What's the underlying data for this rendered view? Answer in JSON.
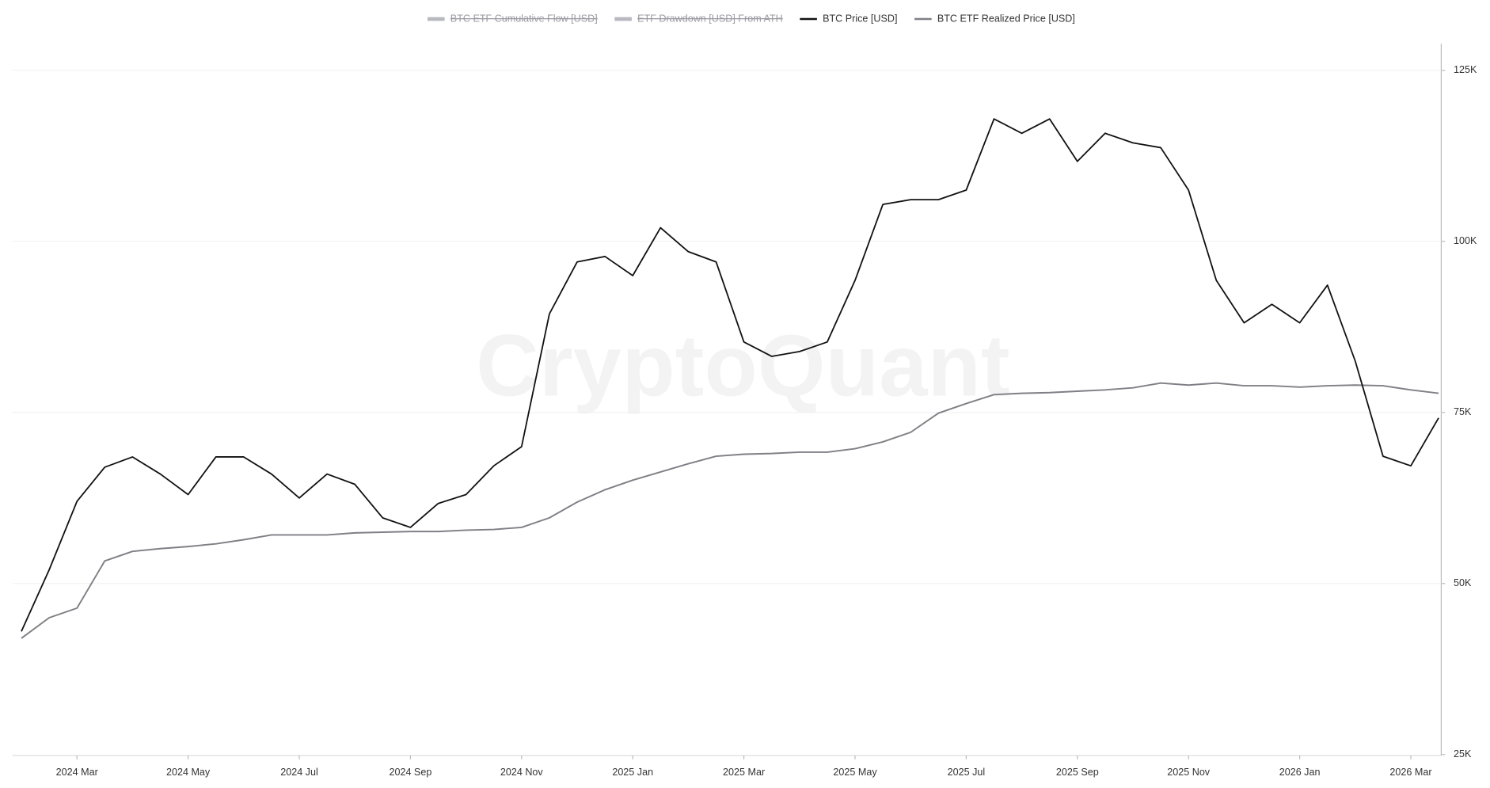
{
  "chart_data": {
    "type": "line",
    "watermark": "CryptoQuant",
    "categories": [
      null,
      null,
      "2024 Mar",
      null,
      null,
      null,
      "2024 May",
      null,
      null,
      null,
      "2024 Jul",
      null,
      null,
      null,
      "2024 Sep",
      null,
      null,
      null,
      "2024 Nov",
      null,
      null,
      null,
      "2025 Jan",
      null,
      null,
      null,
      "2025 Mar",
      null,
      null,
      null,
      "2025 May",
      null,
      null,
      null,
      "2025 Jul",
      null,
      null,
      null,
      "2025 Sep",
      null,
      null,
      null,
      "2025 Nov",
      null,
      null,
      null,
      "2026 Jan",
      null,
      null,
      null,
      "2026 Mar",
      null
    ],
    "hidden_series": [
      {
        "name": "BTC ETF Cumulative Flow [USD]",
        "color": "#b8b9c0"
      },
      {
        "name": "ETF Drawdown [USD] From ATH",
        "color": "#b8b9c0"
      }
    ],
    "series": [
      {
        "name": "BTC Price [USD]",
        "color": "#111111",
        "values": [
          43000,
          52000,
          62000,
          67000,
          68500,
          66000,
          63000,
          68500,
          68500,
          66000,
          62500,
          66000,
          64500,
          59600,
          58200,
          61700,
          63000,
          67200,
          70000,
          89400,
          97000,
          97800,
          95000,
          102000,
          98500,
          97000,
          85300,
          83200,
          83900,
          85300,
          94300,
          105400,
          106100,
          106100,
          107500,
          117900,
          115800,
          117900,
          111700,
          115800,
          114400,
          113700,
          107500,
          94300,
          88100,
          90800,
          88100,
          93600,
          82500,
          68600,
          67200,
          74200
        ]
      },
      {
        "name": "BTC ETF Realized Price [USD]",
        "color": "#7f7f85",
        "values": [
          42000,
          45000,
          46400,
          53300,
          54700,
          55100,
          55400,
          55800,
          56400,
          57100,
          57100,
          57100,
          57400,
          57500,
          57600,
          57600,
          57800,
          57900,
          58200,
          59600,
          61900,
          63700,
          65100,
          66300,
          67500,
          68600,
          68900,
          69000,
          69200,
          69200,
          69700,
          70700,
          72100,
          74900,
          76300,
          77600,
          77800,
          77900,
          78100,
          78300,
          78600,
          79300,
          79000,
          79300,
          78900,
          78900,
          78700,
          78900,
          79000,
          78900,
          78300,
          77800
        ]
      }
    ],
    "ylim": [
      25000,
      125000
    ],
    "yticks": [
      {
        "value": 25000,
        "label": "25K"
      },
      {
        "value": 50000,
        "label": "50K"
      },
      {
        "value": 75000,
        "label": "75K"
      },
      {
        "value": 100000,
        "label": "100K"
      },
      {
        "value": 125000,
        "label": "125K"
      }
    ],
    "grid": true
  }
}
